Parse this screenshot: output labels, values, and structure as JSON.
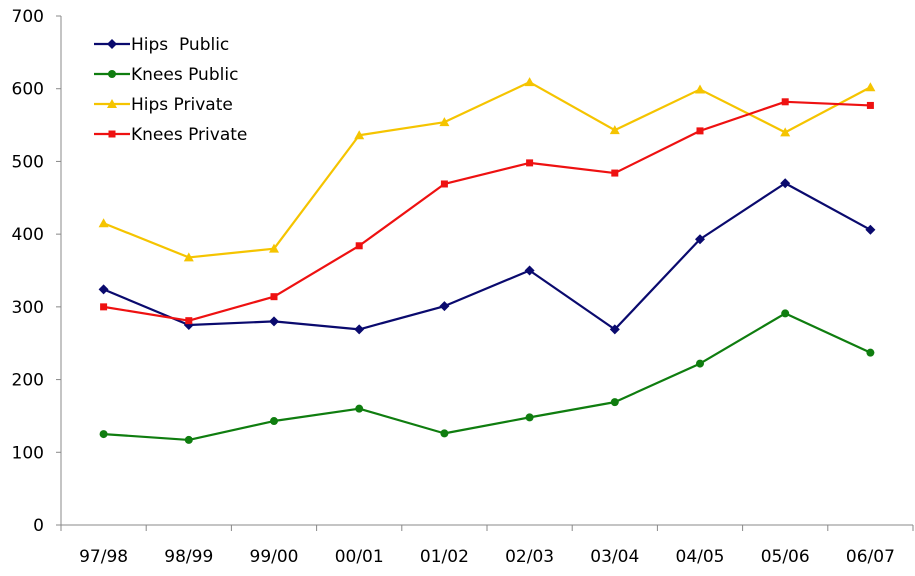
{
  "chart_data": {
    "type": "line",
    "title": "",
    "xlabel": "",
    "ylabel": "",
    "categories": [
      "97/98",
      "98/99",
      "99/00",
      "00/01",
      "01/02",
      "02/03",
      "03/04",
      "04/05",
      "05/06",
      "06/07"
    ],
    "ylim": [
      0,
      700
    ],
    "yticks": [
      "0",
      "100",
      "200",
      "300",
      "400",
      "500",
      "600",
      "700"
    ],
    "grid": false,
    "legend_position": "top-left",
    "series": [
      {
        "name": "Hips  Public",
        "color": "#0a0a6e",
        "marker": "diamond",
        "values": [
          324,
          275,
          280,
          269,
          301,
          350,
          269,
          393,
          470,
          406
        ]
      },
      {
        "name": "Knees Public",
        "color": "#0f7d0f",
        "marker": "circle",
        "values": [
          125,
          117,
          143,
          160,
          126,
          148,
          169,
          222,
          291,
          237
        ]
      },
      {
        "name": "Hips Private",
        "color": "#f5c400",
        "marker": "triangle",
        "values": [
          415,
          368,
          380,
          536,
          554,
          609,
          543,
          599,
          540,
          602
        ]
      },
      {
        "name": "Knees Private",
        "color": "#ee1111",
        "marker": "square",
        "values": [
          300,
          281,
          314,
          384,
          469,
          498,
          484,
          542,
          582,
          577
        ]
      }
    ]
  }
}
